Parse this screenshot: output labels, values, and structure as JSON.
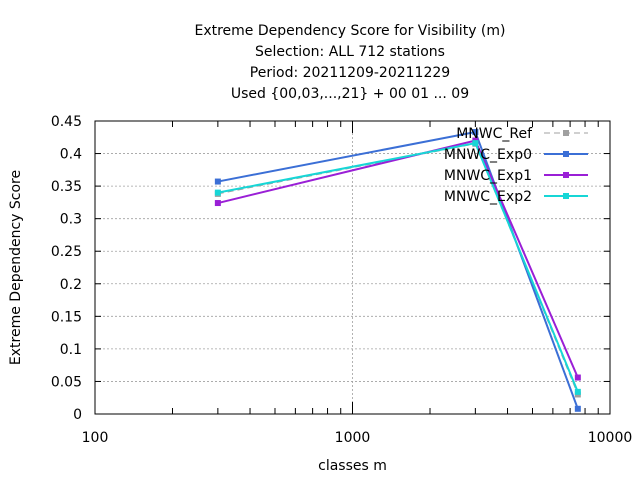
{
  "chart_data": {
    "type": "line",
    "title_lines": [
      "Extreme Dependency Score  for Visibility (m)",
      "Selection: ALL    712 stations",
      "Period: 20211209-20211229",
      "Used {00,03,...,21} + 00 01 ... 09"
    ],
    "xlabel": "classes m",
    "ylabel": "Extreme Dependency Score",
    "x_scale": "log",
    "xlim": [
      100,
      10000
    ],
    "ylim": [
      0,
      0.45
    ],
    "x_ticks": [
      100,
      1000,
      10000
    ],
    "x_tick_labels": [
      "100",
      "1000",
      "10000"
    ],
    "y_ticks": [
      0,
      0.05,
      0.1,
      0.15,
      0.2,
      0.25,
      0.3,
      0.35,
      0.4,
      0.45
    ],
    "y_tick_labels": [
      "0",
      "0.05",
      "0.1",
      "0.15",
      "0.2",
      "0.25",
      "0.3",
      "0.35",
      "0.4",
      "0.45"
    ],
    "grid": true,
    "legend_position": "top-right",
    "x": [
      300,
      3000,
      7500
    ],
    "series": [
      {
        "name": "MNWC_Ref",
        "values": [
          0.338,
          0.415,
          0.03
        ],
        "color": "#a0a0a0",
        "dashed": true
      },
      {
        "name": "MNWC_Exp0",
        "values": [
          0.357,
          0.433,
          0.008
        ],
        "color": "#3b6fd6",
        "dashed": false
      },
      {
        "name": "MNWC_Exp1",
        "values": [
          0.324,
          0.42,
          0.056
        ],
        "color": "#9a1fd6",
        "dashed": false
      },
      {
        "name": "MNWC_Exp2",
        "values": [
          0.34,
          0.416,
          0.034
        ],
        "color": "#17d6d6",
        "dashed": false
      }
    ]
  }
}
